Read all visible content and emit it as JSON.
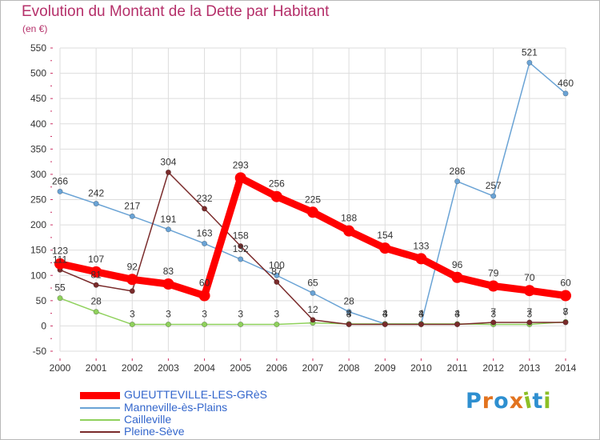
{
  "title": "Evolution du Montant de la Dette par Habitant",
  "subtitle": "(en €)",
  "logo": {
    "text": "Proxiti",
    "letter_colors": [
      "#2e8fd0",
      "#e2731f",
      "#2e8fd0",
      "#e2731f",
      "#8cbf26",
      "#2e8fd0",
      "#8cbf26"
    ]
  },
  "chart_data": {
    "type": "line",
    "title": "Evolution du Montant de la Dette par Habitant",
    "ylabel": "(en €)",
    "xlabel": "",
    "x": [
      "2000",
      "2001",
      "2002",
      "2003",
      "2004",
      "2005",
      "2006",
      "2007",
      "2008",
      "2009",
      "2010",
      "2011",
      "2012",
      "2013",
      "2014"
    ],
    "ylim": [
      -50,
      550
    ],
    "yticks": [
      "-50",
      "0",
      "50",
      "100",
      "150",
      "200",
      "250",
      "300",
      "350",
      "400",
      "450",
      "500",
      "550"
    ],
    "grid": true,
    "legend_position": "bottom-left",
    "series": [
      {
        "name": "Manneville-ès-Plains",
        "color": "#6aa3d5",
        "values": [
          266,
          242,
          217,
          191,
          163,
          132,
          100,
          65,
          28,
          4,
          4,
          286,
          257,
          521,
          460
        ],
        "labels": [
          "266",
          "242",
          "217",
          "191",
          "163",
          "132",
          "100",
          "65",
          "28",
          "4",
          "4",
          "286",
          "257",
          "521",
          "460"
        ]
      },
      {
        "name": "Cailleville",
        "color": "#8fd15c",
        "values": [
          55,
          28,
          3,
          3,
          3,
          3,
          3,
          6,
          4,
          4,
          4,
          4,
          3,
          3,
          8
        ],
        "labels": [
          "55",
          "28",
          "3",
          "3",
          "3",
          "3",
          "3",
          "",
          "4",
          "4",
          "4",
          "4",
          "3",
          "3",
          "8"
        ]
      },
      {
        "name": "Pleine-Sève",
        "color": "#7a2b2b",
        "values": [
          111,
          81,
          69,
          304,
          232,
          158,
          87,
          12,
          3,
          3,
          3,
          3,
          7,
          7,
          7
        ],
        "labels": [
          "111",
          "81",
          "",
          "304",
          "232",
          "158",
          "87",
          "12",
          "3",
          "3",
          "3",
          "3",
          "7",
          "7",
          "7"
        ]
      },
      {
        "name": "GUEUTTEVILLE-LES-GRèS",
        "color": "#ff0000",
        "values": [
          123,
          107,
          92,
          83,
          60,
          293,
          256,
          225,
          188,
          154,
          133,
          96,
          79,
          70,
          60
        ],
        "labels": [
          "123",
          "107",
          "92",
          "83",
          "60",
          "293",
          "256",
          "225",
          "188",
          "154",
          "133",
          "96",
          "79",
          "70",
          "60"
        ]
      }
    ]
  },
  "legend": [
    {
      "name": "GUEUTTEVILLE-LES-GRèS",
      "color": "#ff0000"
    },
    {
      "name": "Manneville-ès-Plains",
      "color": "#6aa3d5"
    },
    {
      "name": "Cailleville",
      "color": "#8fd15c"
    },
    {
      "name": "Pleine-Sève",
      "color": "#7a2b2b"
    }
  ]
}
